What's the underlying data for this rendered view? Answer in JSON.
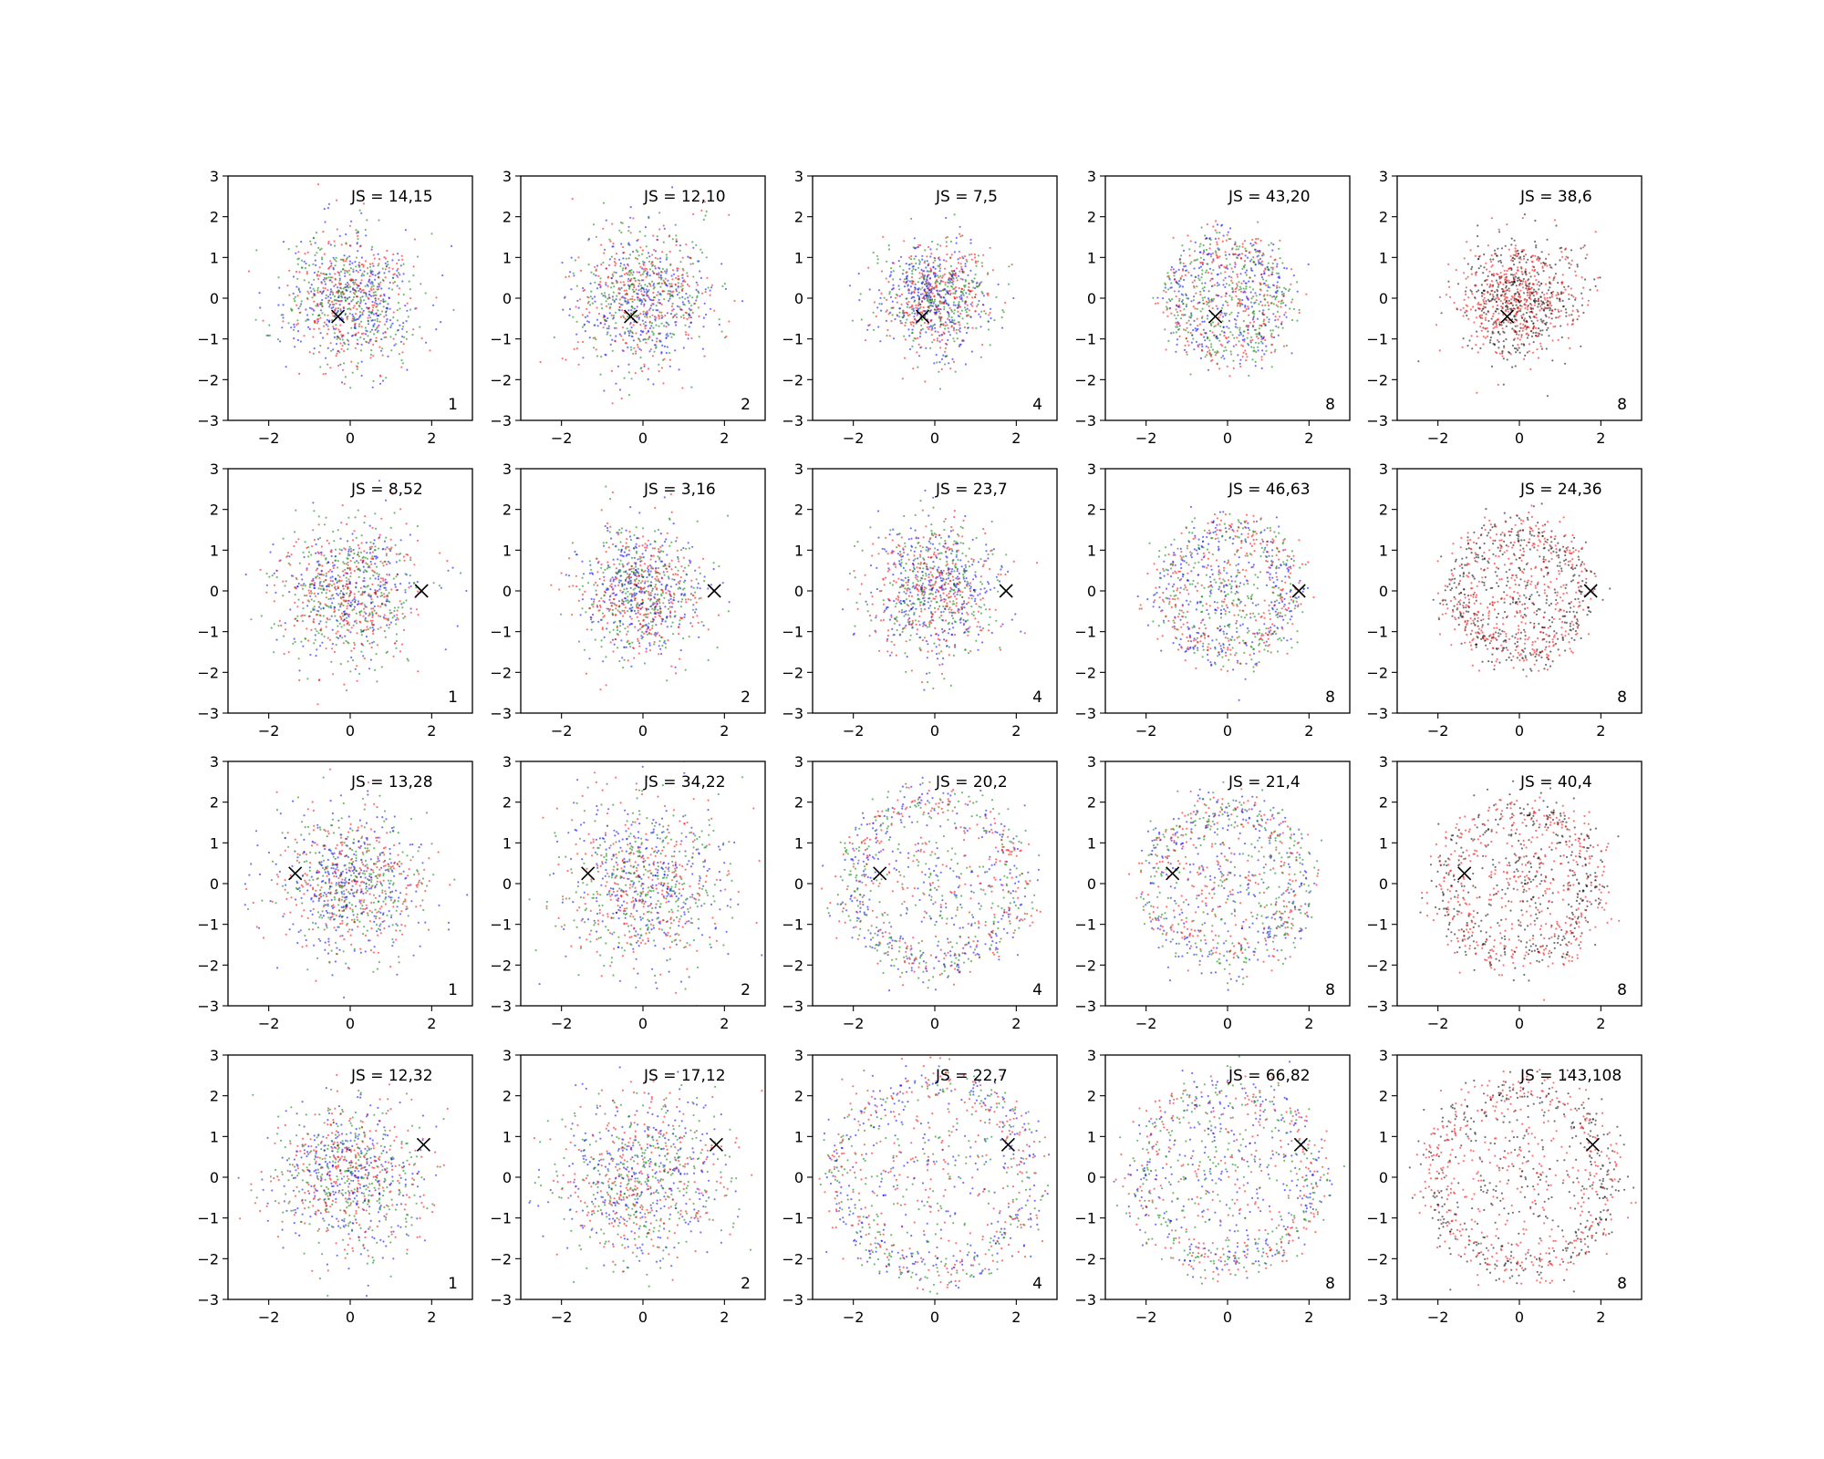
{
  "figure": {
    "rows": 4,
    "cols": 5,
    "xlim": [
      -3,
      3
    ],
    "ylim": [
      -3,
      3
    ],
    "xticks": [
      -2,
      0,
      2
    ],
    "yticks": [
      -3,
      -2,
      -1,
      0,
      1,
      2,
      3
    ],
    "colors": {
      "red": "#ff0000",
      "green": "#008000",
      "blue": "#0000ff",
      "black": "#000000"
    },
    "marker": "x-cross"
  },
  "chart_data": [
    {
      "type": "scatter",
      "title": "JS = 14,15",
      "corner_label": "1",
      "marker": {
        "x": -0.3,
        "y": -0.45
      },
      "distribution": "disk",
      "radius": 1.6,
      "series_colors": [
        "red",
        "green",
        "blue"
      ]
    },
    {
      "type": "scatter",
      "title": "JS = 12,10",
      "corner_label": "2",
      "marker": {
        "x": -0.3,
        "y": -0.45
      },
      "distribution": "disk",
      "radius": 1.7,
      "series_colors": [
        "red",
        "green",
        "blue"
      ]
    },
    {
      "type": "scatter",
      "title": "JS = 7,5",
      "corner_label": "4",
      "marker": {
        "x": -0.3,
        "y": -0.45
      },
      "distribution": "disk",
      "radius": 1.3,
      "series_colors": [
        "red",
        "green",
        "blue"
      ]
    },
    {
      "type": "scatter",
      "title": "JS = 43,20",
      "corner_label": "8",
      "marker": {
        "x": -0.3,
        "y": -0.45
      },
      "distribution": "ring",
      "radius": 1.3,
      "series_colors": [
        "red",
        "green",
        "blue"
      ]
    },
    {
      "type": "scatter",
      "title": "JS = 38,6",
      "corner_label": "8",
      "marker": {
        "x": -0.3,
        "y": -0.45
      },
      "distribution": "disk",
      "radius": 1.4,
      "series_colors": [
        "red",
        "black"
      ]
    },
    {
      "type": "scatter",
      "title": "JS = 8,52",
      "corner_label": "1",
      "marker": {
        "x": 1.75,
        "y": 0.0
      },
      "distribution": "disk",
      "radius": 1.7,
      "series_colors": [
        "red",
        "green",
        "blue"
      ]
    },
    {
      "type": "scatter",
      "title": "JS = 3,16",
      "corner_label": "2",
      "marker": {
        "x": 1.75,
        "y": 0.0
      },
      "distribution": "disk",
      "radius": 1.5,
      "series_colors": [
        "red",
        "green",
        "blue"
      ]
    },
    {
      "type": "scatter",
      "title": "JS = 23,7",
      "corner_label": "4",
      "marker": {
        "x": 1.75,
        "y": 0.0
      },
      "distribution": "disk",
      "radius": 1.6,
      "series_colors": [
        "red",
        "green",
        "blue"
      ]
    },
    {
      "type": "scatter",
      "title": "JS = 46,63",
      "corner_label": "8",
      "marker": {
        "x": 1.75,
        "y": 0.0
      },
      "distribution": "ring",
      "radius": 1.5,
      "series_colors": [
        "red",
        "green",
        "blue"
      ]
    },
    {
      "type": "scatter",
      "title": "JS = 24,36",
      "corner_label": "8",
      "marker": {
        "x": 1.75,
        "y": 0.0
      },
      "distribution": "ring",
      "radius": 1.5,
      "series_colors": [
        "red",
        "black"
      ]
    },
    {
      "type": "scatter",
      "title": "JS = 13,28",
      "corner_label": "1",
      "marker": {
        "x": -1.35,
        "y": 0.25
      },
      "distribution": "disk",
      "radius": 1.8,
      "series_colors": [
        "red",
        "green",
        "blue"
      ]
    },
    {
      "type": "scatter",
      "title": "JS = 34,22",
      "corner_label": "2",
      "marker": {
        "x": -1.35,
        "y": 0.25
      },
      "distribution": "disk",
      "radius": 2.0,
      "series_colors": [
        "red",
        "green",
        "blue"
      ]
    },
    {
      "type": "scatter",
      "title": "JS = 20,2",
      "corner_label": "4",
      "marker": {
        "x": -1.35,
        "y": 0.25
      },
      "distribution": "ring",
      "radius": 2.0,
      "series_colors": [
        "red",
        "green",
        "blue"
      ]
    },
    {
      "type": "scatter",
      "title": "JS = 21,4",
      "corner_label": "8",
      "marker": {
        "x": -1.35,
        "y": 0.25
      },
      "distribution": "ring",
      "radius": 1.8,
      "series_colors": [
        "red",
        "green",
        "blue"
      ]
    },
    {
      "type": "scatter",
      "title": "JS = 40,4",
      "corner_label": "8",
      "marker": {
        "x": -1.35,
        "y": 0.25
      },
      "distribution": "ring",
      "radius": 1.8,
      "series_colors": [
        "red",
        "black"
      ]
    },
    {
      "type": "scatter",
      "title": "JS = 12,32",
      "corner_label": "1",
      "marker": {
        "x": 1.8,
        "y": 0.8
      },
      "distribution": "disk",
      "radius": 1.8,
      "series_colors": [
        "red",
        "green",
        "blue"
      ]
    },
    {
      "type": "scatter",
      "title": "JS = 17,12",
      "corner_label": "2",
      "marker": {
        "x": 1.8,
        "y": 0.8
      },
      "distribution": "disk",
      "radius": 2.1,
      "series_colors": [
        "red",
        "green",
        "blue"
      ]
    },
    {
      "type": "scatter",
      "title": "JS = 22,7",
      "corner_label": "4",
      "marker": {
        "x": 1.8,
        "y": 0.8
      },
      "distribution": "ring",
      "radius": 2.3,
      "series_colors": [
        "red",
        "green",
        "blue"
      ]
    },
    {
      "type": "scatter",
      "title": "JS = 66,82",
      "corner_label": "8",
      "marker": {
        "x": 1.8,
        "y": 0.8
      },
      "distribution": "ring",
      "radius": 2.1,
      "series_colors": [
        "red",
        "green",
        "blue"
      ]
    },
    {
      "type": "scatter",
      "title": "JS = 143,108",
      "corner_label": "8",
      "marker": {
        "x": 1.8,
        "y": 0.8
      },
      "distribution": "ring",
      "radius": 2.1,
      "series_colors": [
        "red",
        "black"
      ]
    }
  ]
}
